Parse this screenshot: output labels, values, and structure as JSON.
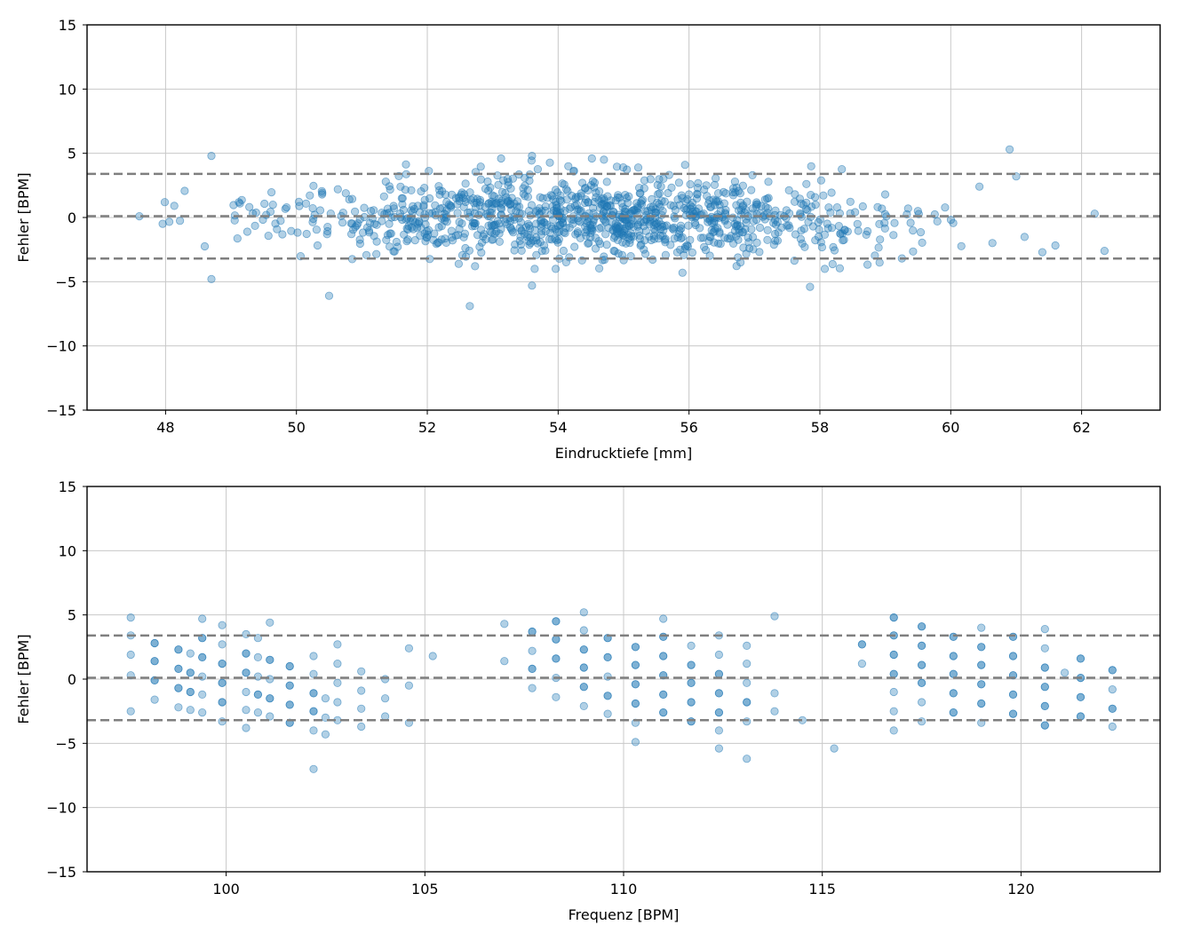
{
  "chart_data": [
    {
      "type": "scatter",
      "xlabel": "Eindrucktiefe [mm]",
      "ylabel": "Fehler [BPM]",
      "xlim": [
        46.8,
        63.2
      ],
      "ylim": [
        -15,
        15
      ],
      "xticks": [
        48,
        50,
        52,
        54,
        56,
        58,
        60,
        62
      ],
      "yticks": [
        -15,
        -10,
        -5,
        0,
        5,
        10,
        15
      ],
      "grid": true,
      "marker_color": "#1f77b4",
      "marker_alpha": 0.35,
      "reference_lines": {
        "mean": 0.1,
        "upper": 3.4,
        "lower": -3.2,
        "color": "#7f7f7f",
        "style": "dashed"
      },
      "point_count": 1100,
      "x_center": 54.5,
      "spread_sd": 1.6,
      "outliers": [
        {
          "x": 48.7,
          "y": 4.8
        },
        {
          "x": 48.7,
          "y": -4.8
        },
        {
          "x": 50.5,
          "y": -6.1
        },
        {
          "x": 52.65,
          "y": -6.9
        },
        {
          "x": 53.6,
          "y": -5.3
        },
        {
          "x": 57.85,
          "y": -5.4
        },
        {
          "x": 60.9,
          "y": 5.3
        },
        {
          "x": 62.35,
          "y": -2.6
        },
        {
          "x": 47.6,
          "y": 0.1
        },
        {
          "x": 53.6,
          "y": 4.8
        },
        {
          "x": 54.7,
          "y": 4.5
        },
        {
          "x": 55.9,
          "y": -4.3
        },
        {
          "x": 61.4,
          "y": -2.7
        },
        {
          "x": 62.2,
          "y": 0.3
        },
        {
          "x": 61.0,
          "y": 3.2
        }
      ]
    },
    {
      "type": "scatter",
      "xlabel": "Frequenz [BPM]",
      "ylabel": "Fehler [BPM]",
      "xlim": [
        96.5,
        123.5
      ],
      "ylim": [
        -15,
        15
      ],
      "xticks": [
        100,
        105,
        110,
        115,
        120
      ],
      "yticks": [
        -15,
        -10,
        -5,
        0,
        5,
        10,
        15
      ],
      "grid": true,
      "marker_color": "#1f77b4",
      "marker_alpha": 0.35,
      "reference_lines": {
        "mean": 0.1,
        "upper": 3.4,
        "lower": -3.2,
        "color": "#7f7f7f",
        "style": "dashed"
      },
      "columns": [
        {
          "x": 97.6,
          "y": [
            4.8,
            3.4,
            1.9,
            0.3,
            -2.5
          ]
        },
        {
          "x": 98.2,
          "y": [
            2.8,
            2.8,
            1.4,
            1.4,
            -0.1,
            -0.1,
            -1.6
          ]
        },
        {
          "x": 98.8,
          "y": [
            2.3,
            2.3,
            0.8,
            0.8,
            -0.7,
            -0.7,
            -2.2
          ]
        },
        {
          "x": 99.1,
          "y": [
            2.0,
            0.5,
            0.5,
            -1.0,
            -1.0,
            -2.4
          ]
        },
        {
          "x": 99.4,
          "y": [
            4.7,
            3.2,
            3.2,
            1.7,
            1.7,
            0.2,
            -1.2,
            -2.6
          ]
        },
        {
          "x": 99.9,
          "y": [
            4.2,
            2.7,
            1.2,
            1.2,
            -0.3,
            -0.3,
            -1.8,
            -1.8,
            -3.3
          ]
        },
        {
          "x": 100.5,
          "y": [
            3.5,
            2.0,
            2.0,
            0.5,
            0.5,
            -1.0,
            -2.4,
            -3.8
          ]
        },
        {
          "x": 100.8,
          "y": [
            3.2,
            1.7,
            0.2,
            -1.2,
            -1.2,
            -2.6
          ]
        },
        {
          "x": 101.1,
          "y": [
            4.4,
            1.5,
            1.5,
            0.0,
            -1.5,
            -1.5,
            -2.9
          ]
        },
        {
          "x": 101.6,
          "y": [
            1.0,
            1.0,
            -0.5,
            -0.5,
            -2.0,
            -2.0,
            -3.4,
            -3.4
          ]
        },
        {
          "x": 102.2,
          "y": [
            1.8,
            0.4,
            -1.1,
            -1.1,
            -2.5,
            -2.5,
            -4.0,
            -7.0
          ]
        },
        {
          "x": 102.5,
          "y": [
            -1.5,
            -3.0,
            -4.3
          ]
        },
        {
          "x": 102.8,
          "y": [
            2.7,
            1.2,
            -0.3,
            -1.8,
            -3.2
          ]
        },
        {
          "x": 103.4,
          "y": [
            0.6,
            -0.9,
            -2.3,
            -3.7
          ]
        },
        {
          "x": 104.0,
          "y": [
            0.0,
            -1.5,
            -2.9
          ]
        },
        {
          "x": 104.6,
          "y": [
            2.4,
            -0.5,
            -3.4
          ]
        },
        {
          "x": 105.2,
          "y": [
            1.8
          ]
        },
        {
          "x": 107.0,
          "y": [
            4.3,
            1.4
          ]
        },
        {
          "x": 107.7,
          "y": [
            3.7,
            3.7,
            2.2,
            0.8,
            0.8,
            -0.7
          ]
        },
        {
          "x": 108.3,
          "y": [
            4.5,
            4.5,
            3.1,
            3.1,
            1.6,
            1.6,
            0.1,
            -1.4
          ]
        },
        {
          "x": 109.0,
          "y": [
            5.2,
            3.8,
            2.3,
            2.3,
            0.9,
            0.9,
            -0.6,
            -0.6,
            -2.1
          ]
        },
        {
          "x": 109.6,
          "y": [
            3.2,
            3.2,
            1.7,
            1.7,
            0.2,
            -1.3,
            -1.3,
            -2.7
          ]
        },
        {
          "x": 110.3,
          "y": [
            2.5,
            2.5,
            1.1,
            1.1,
            -0.4,
            -0.4,
            -1.9,
            -1.9,
            -3.4,
            -4.9
          ]
        },
        {
          "x": 111.0,
          "y": [
            4.7,
            3.3,
            3.3,
            1.8,
            1.8,
            0.3,
            0.3,
            -1.2,
            -1.2,
            -2.6,
            -2.6
          ]
        },
        {
          "x": 111.7,
          "y": [
            2.6,
            1.1,
            1.1,
            -0.3,
            -0.3,
            -1.8,
            -1.8,
            -3.3,
            -3.3
          ]
        },
        {
          "x": 112.4,
          "y": [
            3.4,
            1.9,
            0.4,
            0.4,
            -1.1,
            -1.1,
            -2.6,
            -2.6,
            -4.0,
            -5.4
          ]
        },
        {
          "x": 113.1,
          "y": [
            2.6,
            1.2,
            -0.3,
            -1.8,
            -1.8,
            -3.3,
            -6.2
          ]
        },
        {
          "x": 113.8,
          "y": [
            4.9,
            -1.1,
            -2.5
          ]
        },
        {
          "x": 114.5,
          "y": [
            -3.2
          ]
        },
        {
          "x": 115.3,
          "y": [
            -5.4
          ]
        },
        {
          "x": 116.0,
          "y": [
            2.7,
            2.7,
            1.2
          ]
        },
        {
          "x": 116.8,
          "y": [
            4.8,
            4.8,
            3.4,
            3.4,
            1.9,
            1.9,
            0.4,
            0.4,
            -1.0,
            -2.5,
            -4.0
          ]
        },
        {
          "x": 117.5,
          "y": [
            4.1,
            4.1,
            2.6,
            2.6,
            1.1,
            1.1,
            -0.3,
            -0.3,
            -1.8,
            -3.3
          ]
        },
        {
          "x": 118.3,
          "y": [
            3.3,
            3.3,
            1.8,
            1.8,
            0.4,
            0.4,
            -1.1,
            -1.1,
            -2.6,
            -2.6
          ]
        },
        {
          "x": 119.0,
          "y": [
            4.0,
            2.5,
            2.5,
            1.1,
            1.1,
            -0.4,
            -0.4,
            -1.9,
            -1.9,
            -3.4
          ]
        },
        {
          "x": 119.8,
          "y": [
            3.3,
            3.3,
            1.8,
            1.8,
            0.3,
            0.3,
            -1.2,
            -1.2,
            -2.7,
            -2.7
          ]
        },
        {
          "x": 120.6,
          "y": [
            3.9,
            2.4,
            0.9,
            0.9,
            -0.6,
            -0.6,
            -2.1,
            -2.1,
            -3.6,
            -3.6
          ]
        },
        {
          "x": 121.1,
          "y": [
            0.5
          ]
        },
        {
          "x": 121.5,
          "y": [
            1.6,
            1.6,
            0.1,
            0.1,
            -1.4,
            -1.4,
            -2.9,
            -2.9
          ]
        },
        {
          "x": 122.3,
          "y": [
            0.7,
            0.7,
            -0.8,
            -2.3,
            -2.3,
            -3.7
          ]
        }
      ]
    }
  ]
}
